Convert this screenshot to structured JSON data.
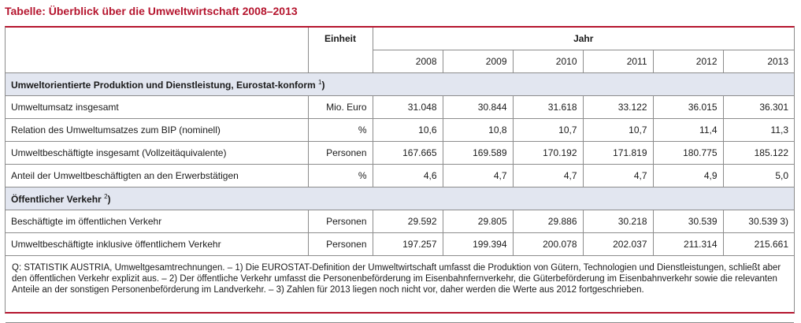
{
  "title": "Tabelle: Überblick über die Umweltwirtschaft 2008–2013",
  "header": {
    "einheit_label": "Einheit",
    "jahr_label": "Jahr",
    "years": [
      "2008",
      "2009",
      "2010",
      "2011",
      "2012",
      "2013"
    ]
  },
  "sections": [
    {
      "title": "Umweltorientierte Produktion und Dienstleistung, Eurostat-konform",
      "footnote": "1",
      "rows": [
        {
          "label": "Umweltumsatz insgesamt",
          "unit": "Mio. Euro",
          "values": [
            "31.048",
            "30.844",
            "31.618",
            "33.122",
            "36.015",
            "36.301"
          ]
        },
        {
          "label": "Relation des Umweltumsatzes zum BIP (nominell)",
          "unit": "%",
          "values": [
            "10,6",
            "10,8",
            "10,7",
            "10,7",
            "11,4",
            "11,3"
          ]
        },
        {
          "label": "Umweltbeschäftigte insgesamt (Vollzeitäquivalente)",
          "unit": "Personen",
          "values": [
            "167.665",
            "169.589",
            "170.192",
            "171.819",
            "180.775",
            "185.122"
          ]
        },
        {
          "label": "Anteil der Umweltbeschäftigten an den Erwerbstätigen",
          "unit": "%",
          "values": [
            "4,6",
            "4,7",
            "4,7",
            "4,7",
            "4,9",
            "5,0"
          ]
        }
      ]
    },
    {
      "title": "Öffentlicher Verkehr",
      "footnote": "2",
      "rows": [
        {
          "label": "Beschäftigte im öffentlichen Verkehr",
          "unit": "Personen",
          "values": [
            "29.592",
            "29.805",
            "29.886",
            "30.218",
            "30.539",
            "30.539 3)"
          ]
        },
        {
          "label": "Umweltbeschäftigte inklusive öffentlichem Verkehr",
          "unit": "Personen",
          "values": [
            "197.257",
            "199.394",
            "200.078",
            "202.037",
            "211.314",
            "215.661"
          ]
        }
      ]
    }
  ],
  "notes": "Q: STATISTIK AUSTRIA, Umweltgesamtrechnungen. – 1) Die EUROSTAT-Definition der Umweltwirtschaft umfasst die Produktion von Gütern, Technologien und Dienstleistungen, schließt aber den öffentlichen Verkehr explizit aus. – 2) Der öffentliche Verkehr umfasst die Personenbeförderung im Eisenbahnfernverkehr, die Güterbeförderung im Eisenbahnverkehr sowie die relevanten Anteile an der sonstigen Personenbeförderung im Landverkehr. – 3) Zahlen für 2013 liegen noch nicht vor, daher werden die Werte aus 2012 fortgeschrieben."
}
